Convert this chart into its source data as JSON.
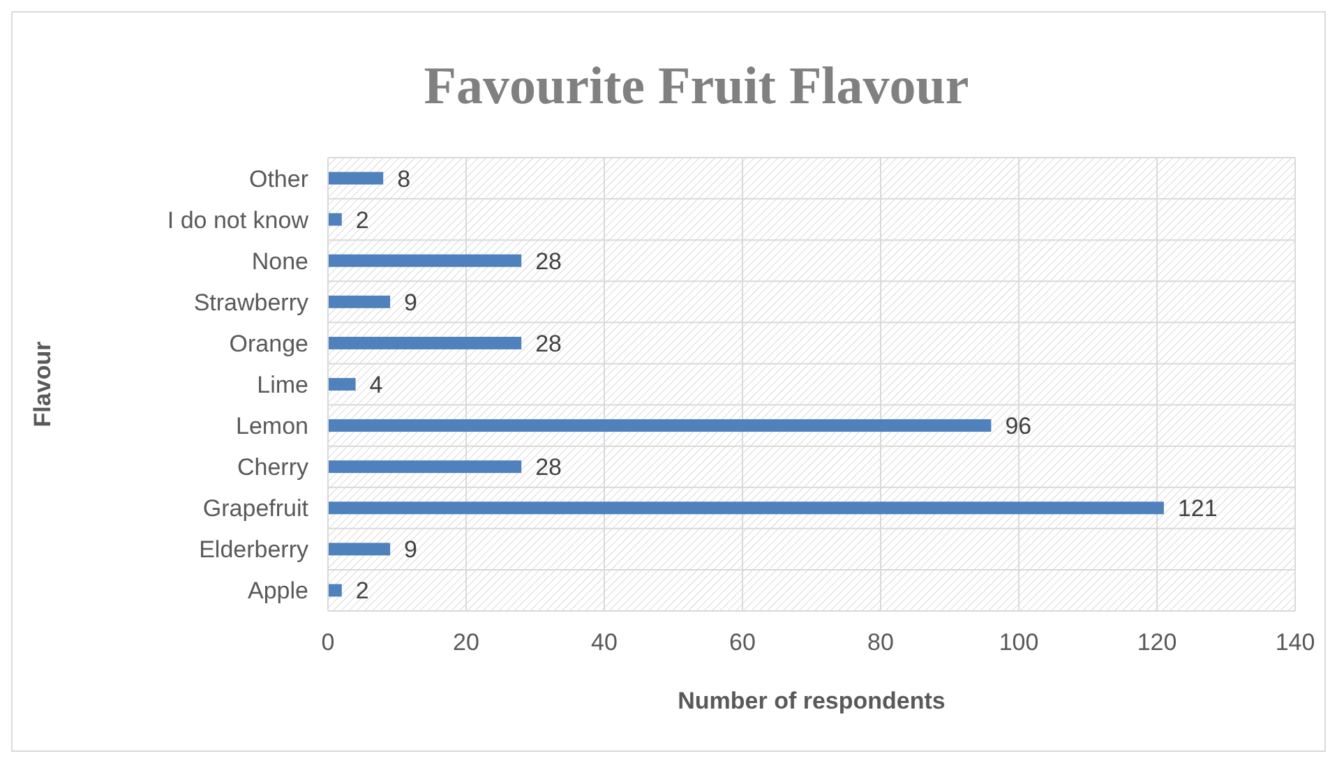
{
  "chart_data": {
    "type": "bar",
    "orientation": "horizontal",
    "title": "Favourite Fruit Flavour",
    "xlabel": "Number of respondents",
    "ylabel": "Flavour",
    "categories": [
      "Other",
      "I do not know",
      "None",
      "Strawberry",
      "Orange",
      "Lime",
      "Lemon",
      "Cherry",
      "Grapefruit",
      "Elderberry",
      "Apple"
    ],
    "values": [
      8,
      2,
      28,
      9,
      28,
      4,
      96,
      28,
      121,
      9,
      2
    ],
    "color": "#4f81bd",
    "xlim": [
      0,
      140
    ],
    "xticks": [
      0,
      20,
      40,
      60,
      80,
      100,
      120,
      140
    ],
    "grid": true,
    "data_labels": true
  }
}
